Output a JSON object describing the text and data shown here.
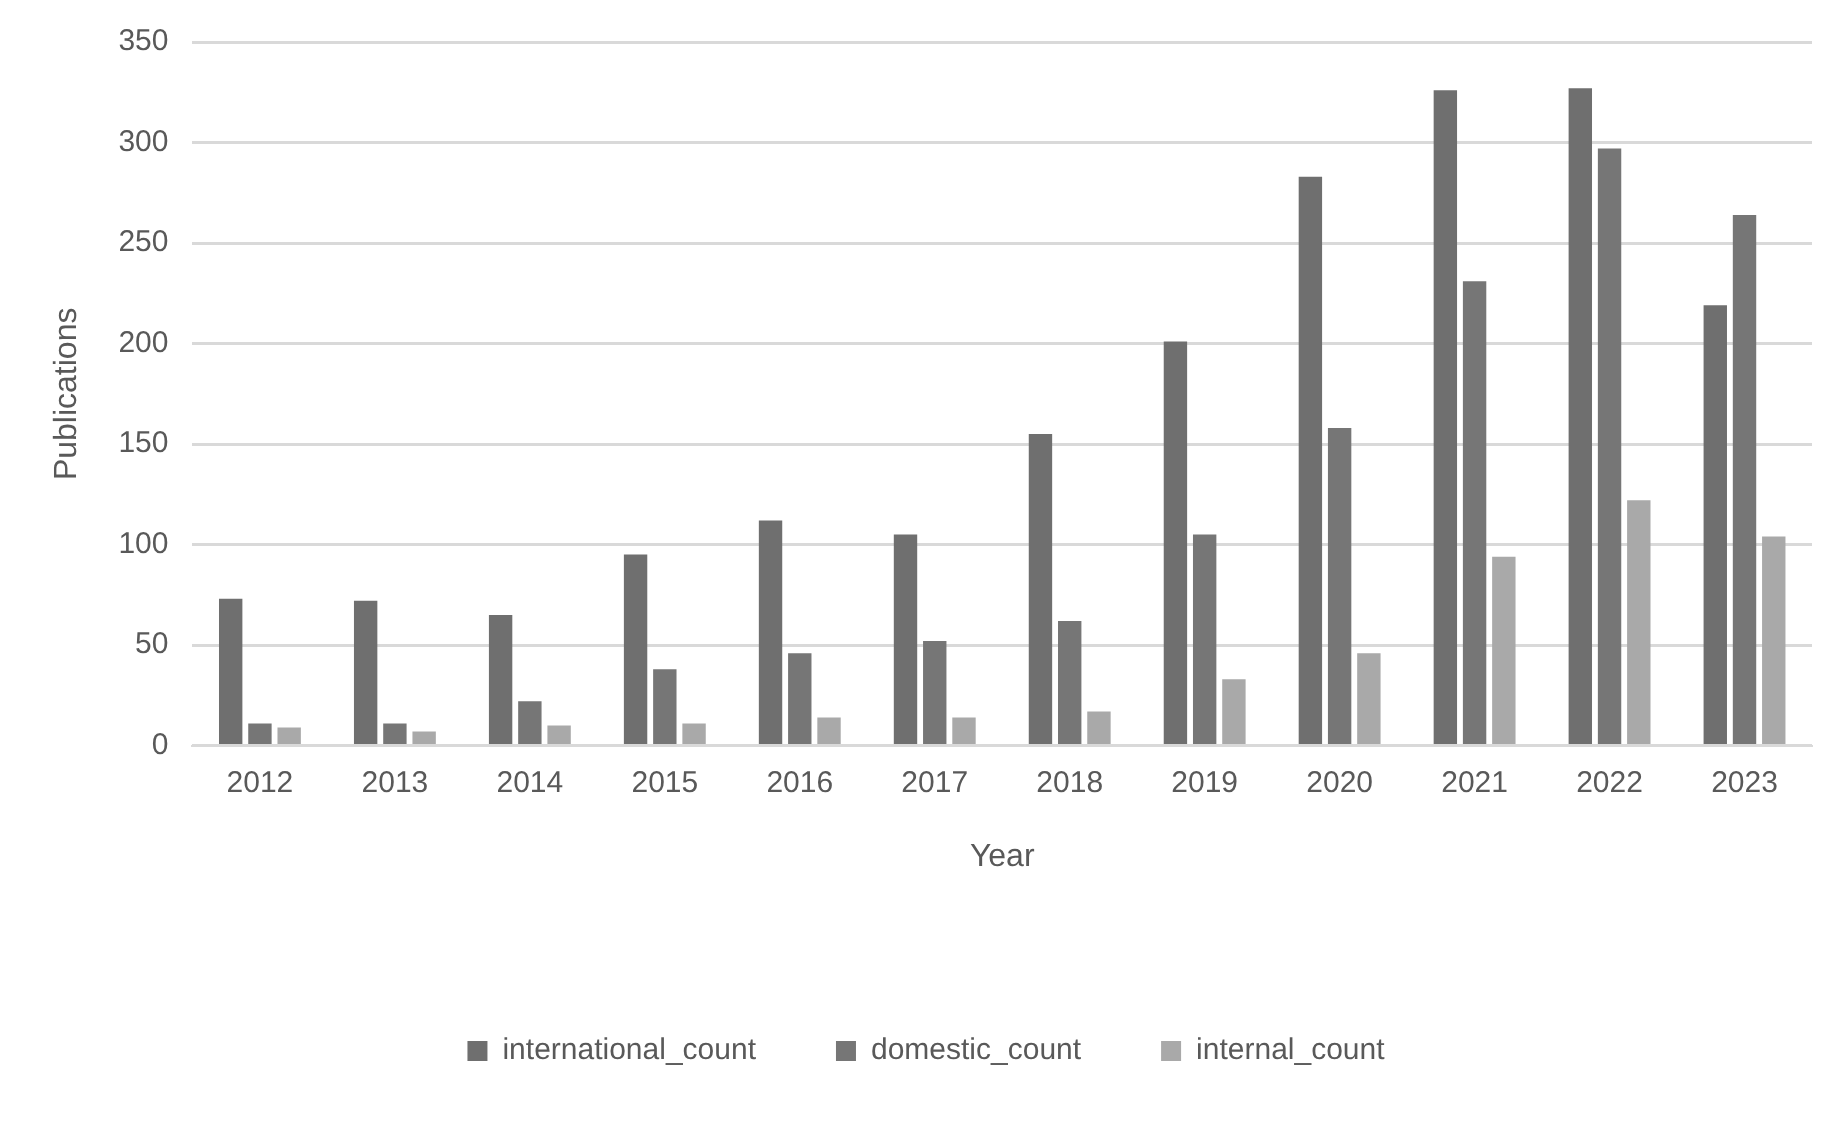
{
  "chart_data": {
    "type": "bar",
    "xlabel": "Year",
    "ylabel": "Publications",
    "categories": [
      "2012",
      "2013",
      "2014",
      "2015",
      "2016",
      "2017",
      "2018",
      "2019",
      "2020",
      "2021",
      "2022",
      "2023"
    ],
    "series": [
      {
        "name": "international_count",
        "color": "#6f6f6f",
        "values": [
          73,
          72,
          65,
          95,
          112,
          105,
          155,
          201,
          283,
          326,
          327,
          219
        ]
      },
      {
        "name": "domestic_count",
        "color": "#767676",
        "values": [
          11,
          11,
          22,
          38,
          46,
          52,
          62,
          105,
          158,
          231,
          297,
          264
        ]
      },
      {
        "name": "internal_count",
        "color": "#a9a9a9",
        "values": [
          9,
          7,
          10,
          11,
          14,
          14,
          17,
          33,
          46,
          94,
          122,
          104
        ]
      }
    ],
    "ylim": [
      0,
      350
    ],
    "yticks": [
      0,
      50,
      100,
      150,
      200,
      250,
      300,
      350
    ],
    "grid": "y",
    "legend": "bottom"
  }
}
